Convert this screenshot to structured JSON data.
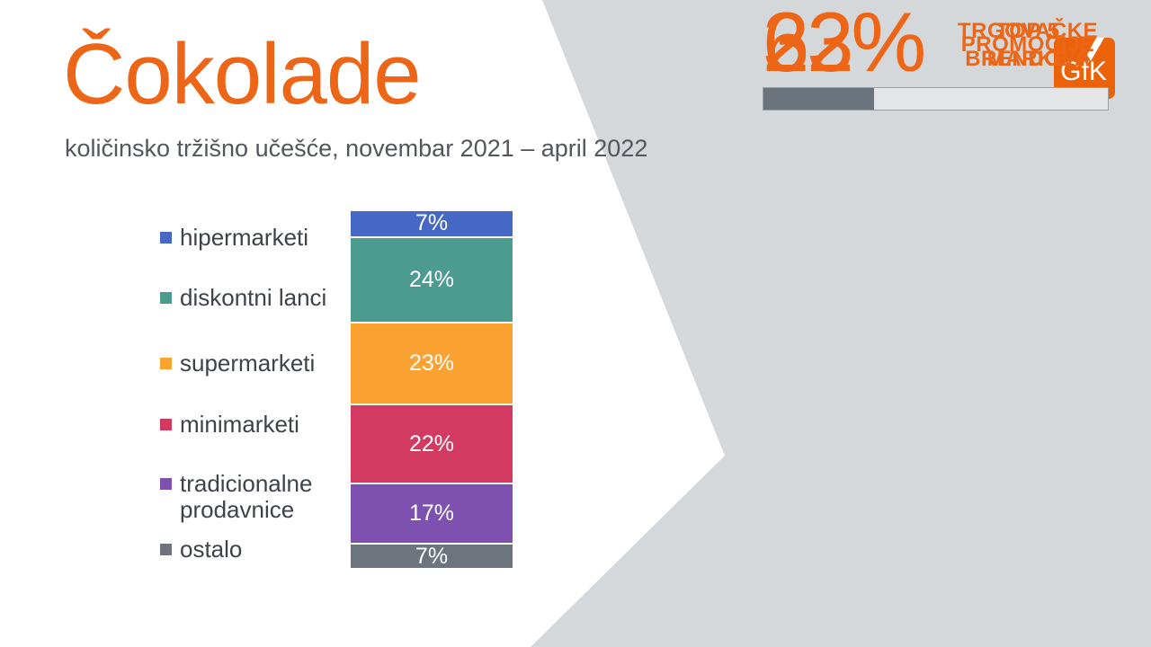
{
  "slide": {
    "title": "Čokolade",
    "subtitle": "količinsko tržišno učešće, novembar 2021 – april 2022"
  },
  "logo": {
    "text": "GfK"
  },
  "chart_data": {
    "type": "bar",
    "stacked": true,
    "title": "Čokolade — količinsko tržišno učešće, novembar 2021 – april 2022",
    "unit": "%",
    "categories": [
      "hipermarketi",
      "diskontni lanci",
      "supermarketi",
      "minimarketi",
      "tradicionalne prodavnice",
      "ostalo"
    ],
    "values": [
      7,
      24,
      23,
      22,
      17,
      7
    ],
    "labels": [
      "7%",
      "24%",
      "23%",
      "22%",
      "17%",
      "7%"
    ],
    "colors": [
      "#4468C3",
      "#4C9B8F",
      "#FBA233",
      "#D23A62",
      "#7E50B0",
      "#6D747D"
    ],
    "legend_position": "left",
    "ylim": [
      0,
      100
    ]
  },
  "stats": [
    {
      "value": "62%",
      "label": "TOP 5\nBRENDOVA",
      "percent": 62
    },
    {
      "value": "23%",
      "label": "TRGOVAČKE\nMARKE",
      "percent": 23
    },
    {
      "value": "32%",
      "label": "PROMOCIJE",
      "percent": 32
    }
  ],
  "colors": {
    "accent_orange": "#ED6617",
    "logo_orange": "#EB6209",
    "background_right": "#D5D8DA",
    "progress_fill": "#6B737D",
    "progress_track": "#E3E5E6",
    "progress_border": "#9AA0A4",
    "subtitle_text": "#53575D",
    "legend_text": "#3E434B"
  }
}
